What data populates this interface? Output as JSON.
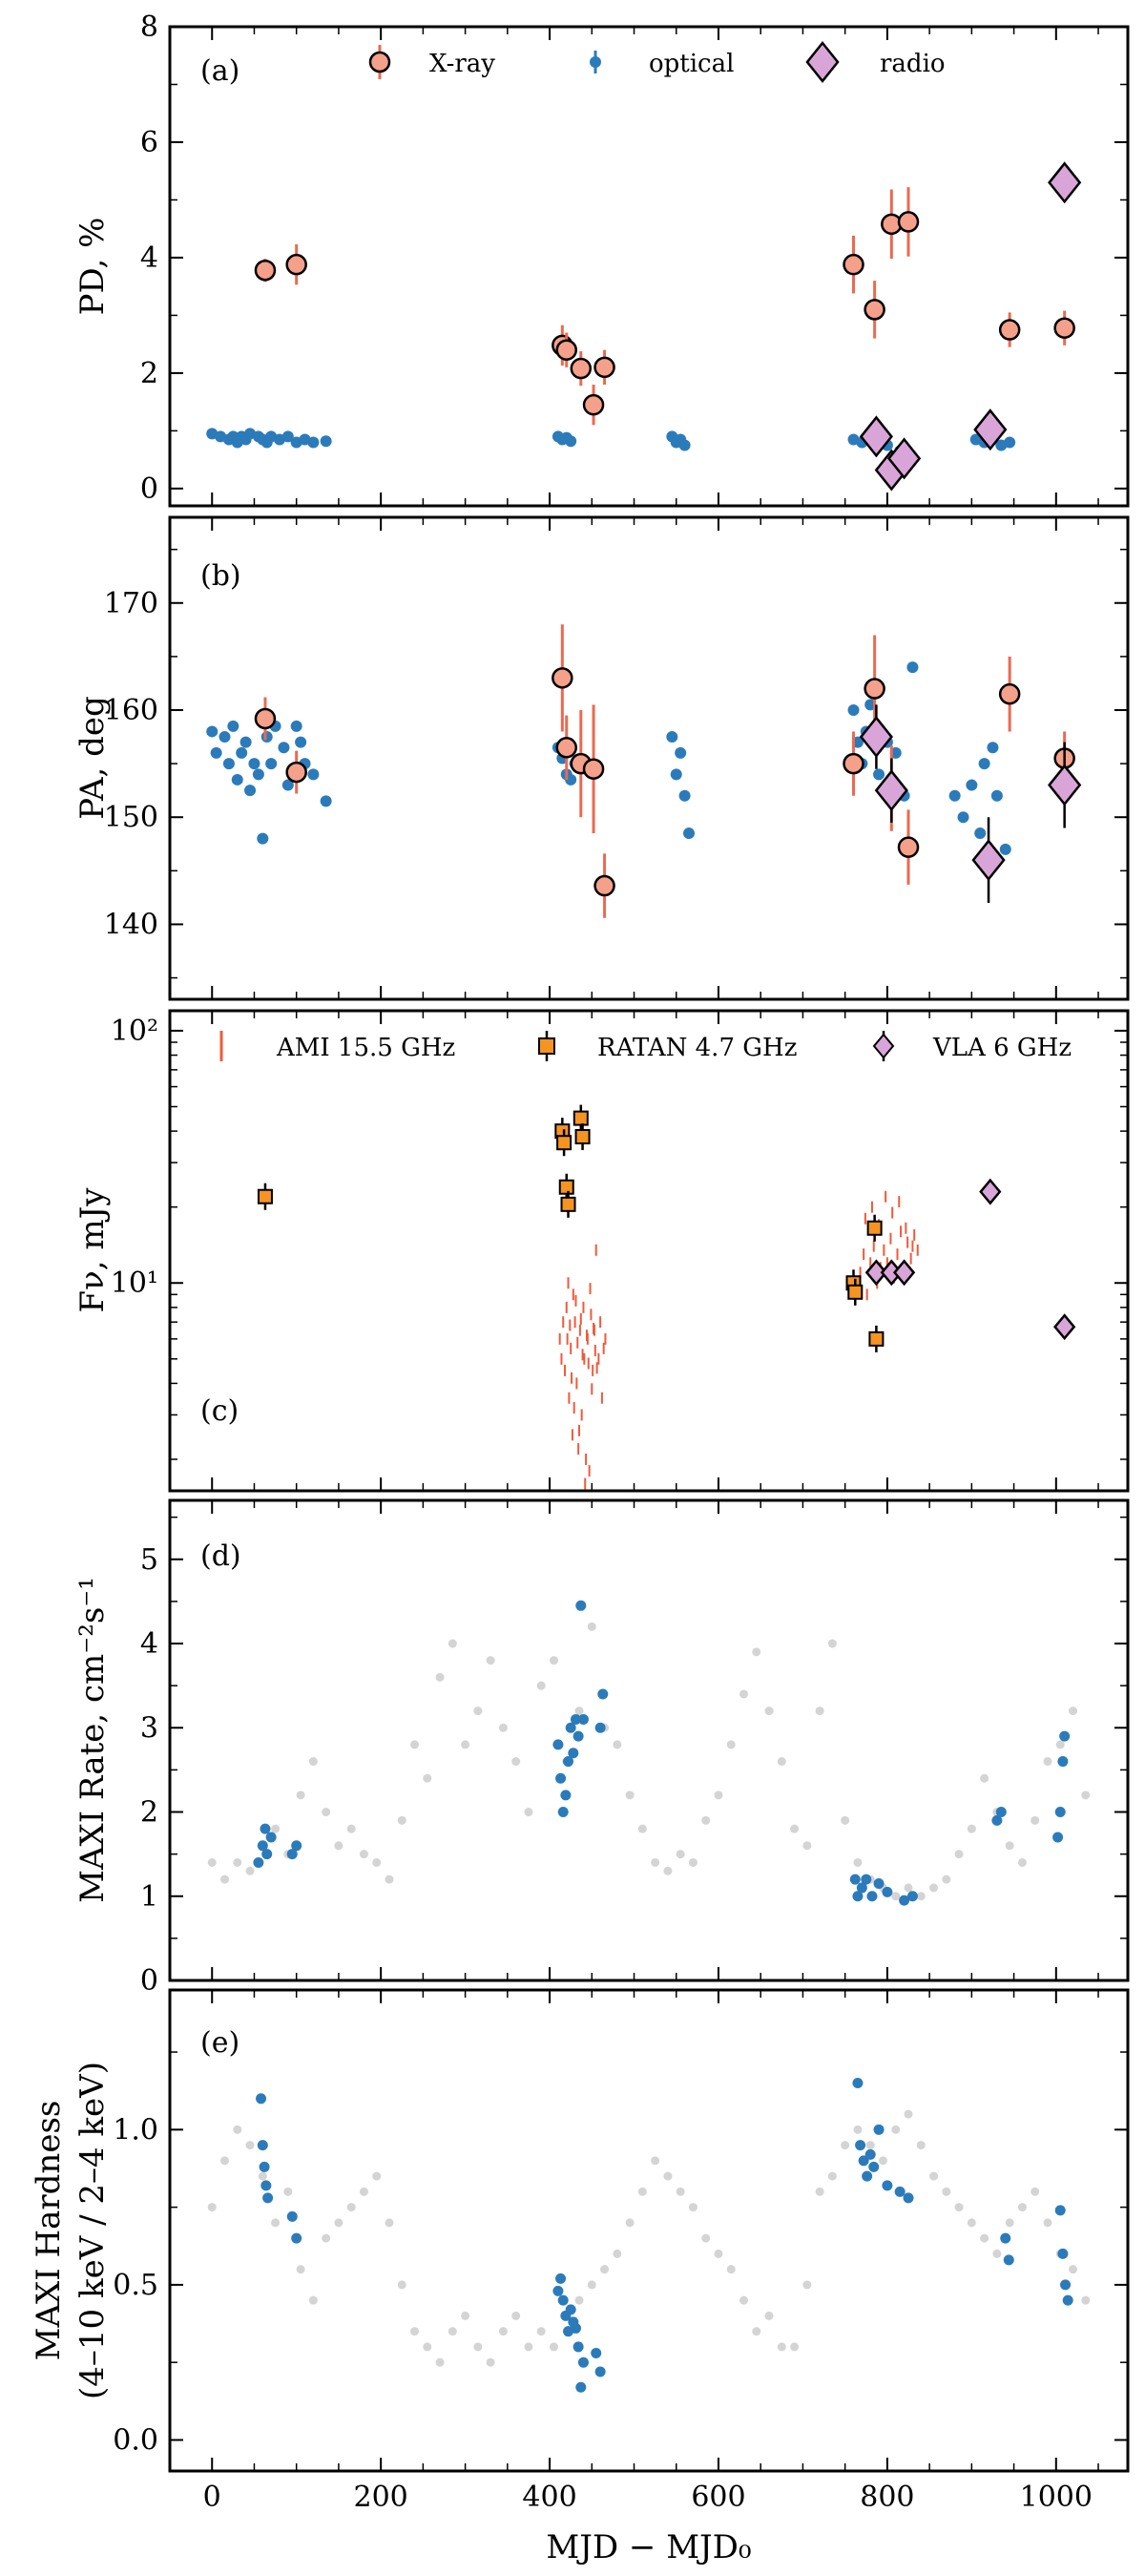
{
  "figure": {
    "xlabel": "MJD − MJD₀",
    "xlim": [
      -50,
      1085
    ],
    "xticks": [
      0,
      200,
      400,
      600,
      800,
      1000
    ],
    "xtick_labels": [
      "0",
      "200",
      "400",
      "600",
      "800",
      "1000"
    ]
  },
  "colors": {
    "xray": "#f4a08a",
    "xray_err": "#ea6a50",
    "optical": "#2b7bbb",
    "radio": "#d9a5d9",
    "ratan": "#f59422",
    "ami": "#f05a3c",
    "maxi_grey": "#d4d4d4",
    "maxi_blue": "#2b7bbb"
  },
  "chart_data": [
    {
      "id": "a",
      "tag": "(a)",
      "type": "scatter",
      "ylabel": "PD, %",
      "ylim": [
        -0.3,
        8
      ],
      "yscale": "linear",
      "yticks": [
        0,
        2,
        4,
        6,
        8
      ],
      "ytick_labels": [
        "0",
        "2",
        "4",
        "6",
        "8"
      ],
      "legend": [
        "X-ray",
        "optical",
        "radio"
      ],
      "series": [
        {
          "name": "optical",
          "marker": "dot",
          "x": [
            0,
            10,
            20,
            25,
            30,
            35,
            40,
            45,
            55,
            60,
            65,
            70,
            80,
            90,
            100,
            110,
            120,
            135,
            410,
            415,
            420,
            425,
            545,
            550,
            555,
            560,
            760,
            770,
            780,
            790,
            800,
            815,
            825,
            905,
            915,
            925,
            935,
            945
          ],
          "y": [
            0.95,
            0.9,
            0.85,
            0.9,
            0.8,
            0.9,
            0.85,
            0.95,
            0.9,
            0.85,
            0.8,
            0.9,
            0.85,
            0.9,
            0.8,
            0.85,
            0.8,
            0.82,
            0.9,
            0.85,
            0.88,
            0.82,
            0.9,
            0.8,
            0.85,
            0.75,
            0.85,
            0.8,
            0.85,
            0.9,
            0.75,
            0.65,
            0.6,
            0.85,
            0.8,
            0.9,
            0.75,
            0.8
          ]
        },
        {
          "name": "X-ray",
          "marker": "circle",
          "x": [
            63,
            100,
            415,
            420,
            437,
            452,
            465,
            760,
            785,
            805,
            825,
            945,
            1010
          ],
          "y": [
            3.78,
            3.88,
            2.48,
            2.4,
            2.08,
            1.45,
            2.1,
            3.88,
            3.1,
            4.58,
            4.62,
            2.75,
            2.78
          ],
          "err": [
            0.2,
            0.35,
            0.35,
            0.3,
            0.3,
            0.35,
            0.3,
            0.5,
            0.5,
            0.6,
            0.6,
            0.3,
            0.3
          ]
        },
        {
          "name": "radio",
          "marker": "diamond",
          "x": [
            787,
            805,
            820,
            922,
            1010
          ],
          "y": [
            0.9,
            0.32,
            0.52,
            1.02,
            5.3
          ]
        }
      ]
    },
    {
      "id": "b",
      "tag": "(b)",
      "type": "scatter",
      "ylabel": "PA, deg",
      "ylim": [
        133,
        178
      ],
      "yscale": "linear",
      "yticks": [
        140,
        150,
        160,
        170
      ],
      "ytick_labels": [
        "140",
        "150",
        "160",
        "170"
      ],
      "series": [
        {
          "name": "optical",
          "marker": "dot",
          "x": [
            0,
            5,
            15,
            20,
            25,
            30,
            35,
            40,
            45,
            50,
            55,
            60,
            65,
            70,
            75,
            85,
            90,
            100,
            105,
            110,
            120,
            135,
            410,
            415,
            420,
            425,
            430,
            545,
            550,
            555,
            560,
            565,
            760,
            765,
            770,
            775,
            780,
            790,
            800,
            810,
            820,
            830,
            880,
            890,
            900,
            910,
            915,
            925,
            930,
            940
          ],
          "y": [
            158,
            156,
            157.5,
            155,
            158.5,
            153.5,
            156,
            157,
            152.5,
            155,
            154,
            148,
            157.5,
            155,
            158.5,
            156.5,
            153,
            158.5,
            157,
            155,
            154,
            151.5,
            156.5,
            155.5,
            154,
            153.5,
            155,
            157.5,
            154,
            156,
            152,
            148.5,
            160,
            157,
            155,
            158,
            160.5,
            154,
            157,
            156,
            152,
            164,
            152,
            150,
            153,
            148.5,
            155,
            156.5,
            152,
            147
          ]
        },
        {
          "name": "X-ray",
          "marker": "circle",
          "x": [
            63,
            100,
            415,
            420,
            437,
            452,
            465,
            760,
            785,
            805,
            825,
            945,
            1010
          ],
          "y": [
            159.2,
            154.2,
            163,
            156.5,
            155,
            154.5,
            143.6,
            155,
            162,
            152.7,
            147.2,
            161.5,
            155.5
          ],
          "err": [
            2,
            2,
            5,
            3,
            5,
            6,
            3,
            3,
            5,
            4,
            3.5,
            3.5,
            2.5
          ]
        },
        {
          "name": "radio",
          "marker": "diamond",
          "x": [
            787,
            805,
            920,
            1010
          ],
          "y": [
            157.5,
            152.5,
            146,
            153
          ],
          "err": [
            3,
            3,
            4,
            4
          ]
        }
      ]
    },
    {
      "id": "c",
      "tag": "(c)",
      "type": "scatter",
      "ylabel": "Fν, mJy",
      "ylim": [
        1.5,
        120
      ],
      "yscale": "log",
      "yticks": [
        10,
        100
      ],
      "ytick_labels": [
        "10¹",
        "10²"
      ],
      "legend": [
        "AMI 15.5 GHz",
        "RATAN 4.7 GHz",
        "VLA 6 GHz"
      ],
      "series": [
        {
          "name": "AMI 15.5 GHz",
          "marker": "errbar",
          "x": [
            412,
            414,
            416,
            418,
            420,
            421,
            423,
            425,
            427,
            428,
            430,
            432,
            434,
            436,
            438,
            440,
            441,
            443,
            445,
            447,
            449,
            451,
            453,
            455,
            458,
            460,
            462,
            464,
            466,
            422,
            424,
            426,
            429,
            431,
            433,
            435,
            437,
            439,
            442,
            444,
            446,
            448,
            450,
            452,
            454,
            456,
            768,
            772,
            776,
            780,
            784,
            788,
            792,
            796,
            800,
            804,
            808,
            812,
            816,
            820,
            824,
            828,
            832,
            836,
            774,
            782,
            790,
            798,
            806,
            814,
            822,
            830
          ],
          "y": [
            6,
            5,
            7,
            4.5,
            8,
            6,
            3.5,
            5.5,
            2.5,
            9,
            7,
            4,
            2.2,
            6.5,
            3,
            8,
            5,
            2,
            6,
            1.8,
            7.5,
            4.5,
            6.5,
            13.5,
            5,
            7,
            3.5,
            5.5,
            6,
            10,
            6.8,
            4.2,
            3.2,
            8.5,
            5.8,
            2.6,
            7.2,
            5.2,
            1.6,
            6.2,
            4.8,
            9.5,
            3.8,
            6.6,
            5.4,
            4.6,
            11,
            13,
            9,
            12,
            14,
            10,
            11.5,
            13.5,
            12,
            15,
            10.5,
            13,
            16,
            11,
            14.5,
            12.5,
            15.5,
            13.5,
            18,
            20,
            17,
            22,
            19,
            21,
            16.5,
            14
          ]
        },
        {
          "name": "RATAN 4.7 GHz",
          "marker": "square",
          "x": [
            63,
            415,
            417,
            420,
            422,
            437,
            439,
            760,
            762,
            785,
            787
          ],
          "y": [
            22,
            40,
            36,
            24,
            20.5,
            45,
            38,
            10,
            9.2,
            16.5,
            6
          ]
        },
        {
          "name": "VLA 6 GHz",
          "marker": "diamond",
          "x": [
            787,
            805,
            820,
            922,
            1010
          ],
          "y": [
            11,
            11,
            11,
            23,
            6.7
          ]
        }
      ]
    },
    {
      "id": "d",
      "tag": "(d)",
      "type": "scatter",
      "ylabel": "MAXI Rate, cm⁻²s⁻¹",
      "ylim": [
        0,
        5.7
      ],
      "yscale": "linear",
      "yticks": [
        0,
        1,
        2,
        3,
        4,
        5
      ],
      "ytick_labels": [
        "0",
        "1",
        "2",
        "3",
        "4",
        "5"
      ],
      "series": [
        {
          "name": "MAXI (all)",
          "marker": "greydot",
          "x": [
            0,
            15,
            30,
            45,
            60,
            75,
            90,
            105,
            120,
            135,
            150,
            165,
            180,
            195,
            210,
            225,
            240,
            255,
            270,
            285,
            300,
            315,
            330,
            345,
            360,
            375,
            390,
            405,
            420,
            435,
            450,
            465,
            480,
            495,
            510,
            525,
            540,
            555,
            570,
            585,
            600,
            615,
            630,
            645,
            660,
            675,
            690,
            705,
            720,
            735,
            750,
            765,
            780,
            795,
            810,
            825,
            840,
            855,
            870,
            885,
            900,
            915,
            930,
            945,
            960,
            975,
            990,
            1005,
            1020,
            1035
          ],
          "y": [
            1.4,
            1.2,
            1.4,
            1.3,
            1.6,
            1.8,
            1.5,
            2.2,
            2.6,
            2.0,
            1.6,
            1.8,
            1.5,
            1.4,
            1.2,
            1.9,
            2.8,
            2.4,
            3.6,
            4.0,
            2.8,
            3.2,
            3.8,
            3.0,
            2.6,
            2.0,
            3.5,
            3.8,
            2.6,
            3.2,
            4.2,
            3.0,
            2.8,
            2.2,
            1.8,
            1.4,
            1.3,
            1.5,
            1.4,
            1.9,
            2.2,
            2.8,
            3.4,
            3.9,
            3.2,
            2.6,
            1.8,
            1.6,
            3.2,
            4.0,
            1.9,
            1.4,
            1.2,
            1.1,
            1.0,
            1.1,
            1.0,
            1.1,
            1.2,
            1.5,
            1.8,
            2.4,
            2.0,
            1.6,
            1.4,
            1.9,
            2.6,
            2.8,
            3.2,
            2.2
          ]
        },
        {
          "name": "MAXI (simultaneous)",
          "marker": "bluedot",
          "x": [
            55,
            60,
            63,
            65,
            70,
            95,
            100,
            410,
            413,
            416,
            419,
            422,
            425,
            428,
            431,
            434,
            437,
            440,
            460,
            463,
            762,
            765,
            770,
            775,
            782,
            790,
            800,
            820,
            830,
            930,
            935,
            1002,
            1005,
            1008,
            1010
          ],
          "y": [
            1.4,
            1.6,
            1.8,
            1.5,
            1.7,
            1.5,
            1.6,
            2.8,
            2.4,
            2.0,
            2.2,
            2.6,
            3.0,
            2.7,
            3.1,
            2.9,
            4.45,
            3.1,
            3.0,
            3.4,
            1.2,
            1.0,
            1.1,
            1.2,
            1.0,
            1.15,
            1.05,
            0.95,
            1.0,
            1.9,
            2.0,
            1.7,
            2.0,
            2.6,
            2.9
          ]
        }
      ]
    },
    {
      "id": "e",
      "tag": "(e)",
      "type": "scatter",
      "ylabel": "MAXI Hardness",
      "ylabel2": "(4–10 keV / 2–4 keV)",
      "ylim": [
        -0.1,
        1.45
      ],
      "yscale": "linear",
      "yticks": [
        0.0,
        0.5,
        1.0
      ],
      "ytick_labels": [
        "0.0",
        "0.5",
        "1.0"
      ],
      "series": [
        {
          "name": "MAXI (all)",
          "marker": "greydot",
          "x": [
            0,
            15,
            30,
            45,
            60,
            75,
            90,
            105,
            120,
            135,
            150,
            165,
            180,
            195,
            210,
            225,
            240,
            255,
            270,
            285,
            300,
            315,
            330,
            345,
            360,
            375,
            390,
            405,
            420,
            435,
            450,
            465,
            480,
            495,
            510,
            525,
            540,
            555,
            570,
            585,
            600,
            615,
            630,
            645,
            660,
            675,
            690,
            705,
            720,
            735,
            750,
            765,
            780,
            795,
            810,
            825,
            840,
            855,
            870,
            885,
            900,
            915,
            930,
            945,
            960,
            975,
            990,
            1005,
            1020,
            1035
          ],
          "y": [
            0.75,
            0.9,
            1.0,
            0.95,
            0.85,
            0.7,
            0.8,
            0.55,
            0.45,
            0.65,
            0.7,
            0.75,
            0.8,
            0.85,
            0.7,
            0.5,
            0.35,
            0.3,
            0.25,
            0.35,
            0.4,
            0.3,
            0.25,
            0.35,
            0.4,
            0.3,
            0.35,
            0.3,
            0.4,
            0.45,
            0.5,
            0.55,
            0.6,
            0.7,
            0.8,
            0.9,
            0.85,
            0.8,
            0.75,
            0.65,
            0.6,
            0.55,
            0.45,
            0.35,
            0.4,
            0.3,
            0.3,
            0.5,
            0.8,
            0.85,
            0.95,
            1.0,
            0.95,
            0.9,
            1.0,
            1.05,
            0.95,
            0.85,
            0.8,
            0.75,
            0.7,
            0.65,
            0.6,
            0.7,
            0.75,
            0.8,
            0.7,
            0.6,
            0.55,
            0.45
          ]
        },
        {
          "name": "MAXI (simultaneous)",
          "marker": "bluedot",
          "x": [
            58,
            60,
            62,
            64,
            66,
            95,
            100,
            410,
            413,
            416,
            419,
            422,
            425,
            428,
            431,
            434,
            437,
            440,
            455,
            460,
            765,
            768,
            772,
            776,
            780,
            784,
            790,
            800,
            815,
            825,
            940,
            944,
            1005,
            1008,
            1011,
            1014
          ],
          "y": [
            1.1,
            0.95,
            0.88,
            0.82,
            0.78,
            0.72,
            0.65,
            0.48,
            0.52,
            0.45,
            0.4,
            0.35,
            0.42,
            0.38,
            0.36,
            0.3,
            0.17,
            0.25,
            0.28,
            0.22,
            1.15,
            0.95,
            0.9,
            0.85,
            0.92,
            0.88,
            1.0,
            0.82,
            0.8,
            0.78,
            0.65,
            0.58,
            0.74,
            0.6,
            0.5,
            0.45
          ]
        }
      ]
    }
  ]
}
